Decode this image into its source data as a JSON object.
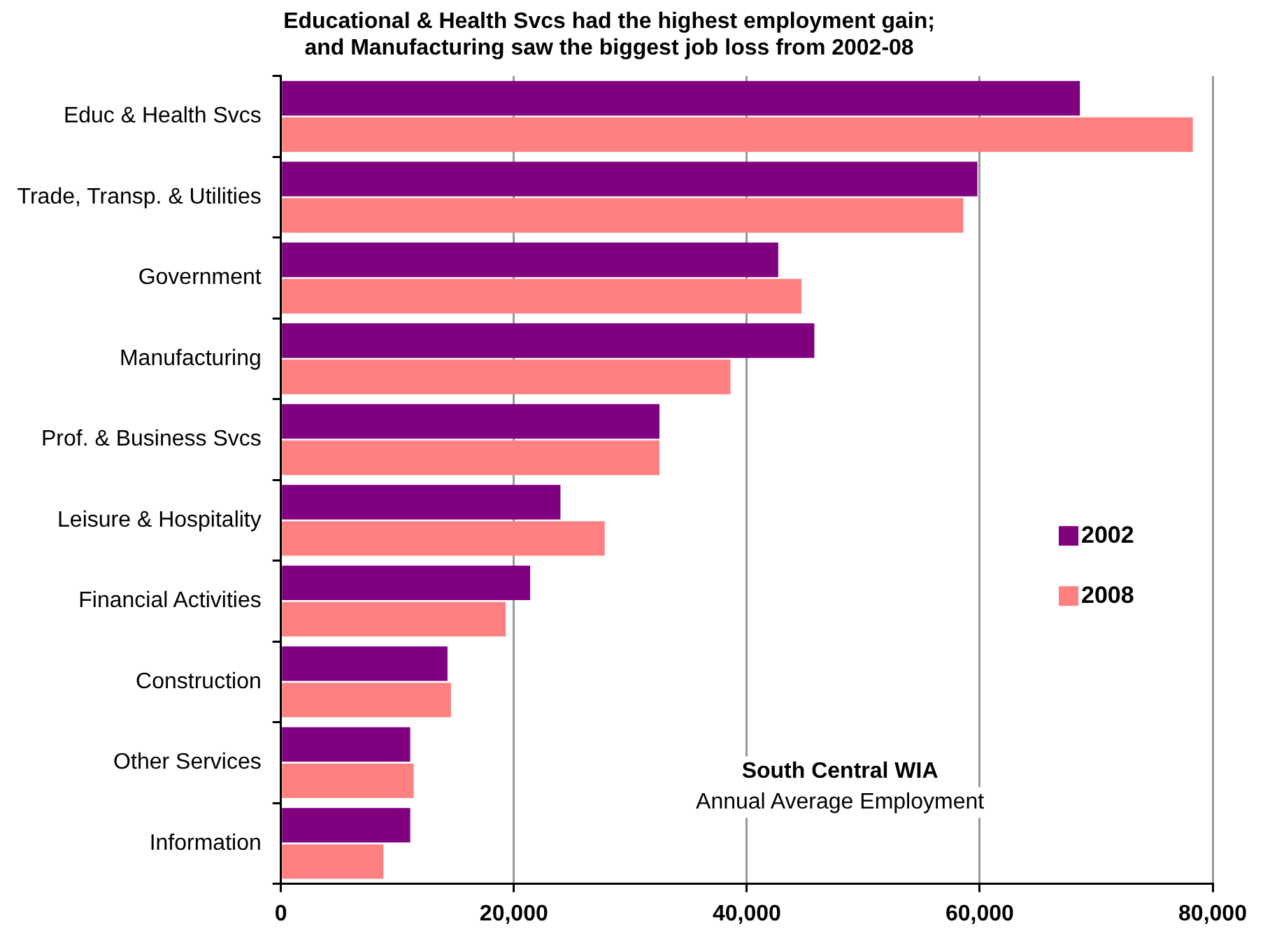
{
  "chart_data": {
    "type": "bar",
    "orientation": "horizontal",
    "title": "Educational & Health Svcs had the highest employment gain; and Manufacturing saw the biggest job loss from 2002-08",
    "categories": [
      "Educ & Health Svcs",
      "Trade, Transp. & Utilities",
      "Government",
      "Manufacturing",
      "Prof. & Business Svcs",
      "Leisure & Hospitality",
      "Financial Activities",
      "Construction",
      "Other Services",
      "Information"
    ],
    "series": [
      {
        "name": "2002",
        "color": "#800080",
        "values": [
          68600,
          59800,
          42700,
          45800,
          32500,
          24000,
          21400,
          14300,
          11100,
          11100
        ]
      },
      {
        "name": "2008",
        "color": "#ff8080",
        "values": [
          78300,
          58600,
          44700,
          38600,
          32500,
          27800,
          19300,
          14600,
          11400,
          8800
        ]
      }
    ],
    "xlim": [
      0,
      80000
    ],
    "xticks": [
      {
        "value": 0,
        "label": "0"
      },
      {
        "value": 20000,
        "label": "20,000"
      },
      {
        "value": 40000,
        "label": "40,000"
      },
      {
        "value": 60000,
        "label": "60,000"
      },
      {
        "value": 80000,
        "label": "80,000"
      }
    ],
    "grid": "x",
    "legend": "right",
    "annotations": [
      "South Central WIA",
      "Annual Average Employment"
    ]
  }
}
